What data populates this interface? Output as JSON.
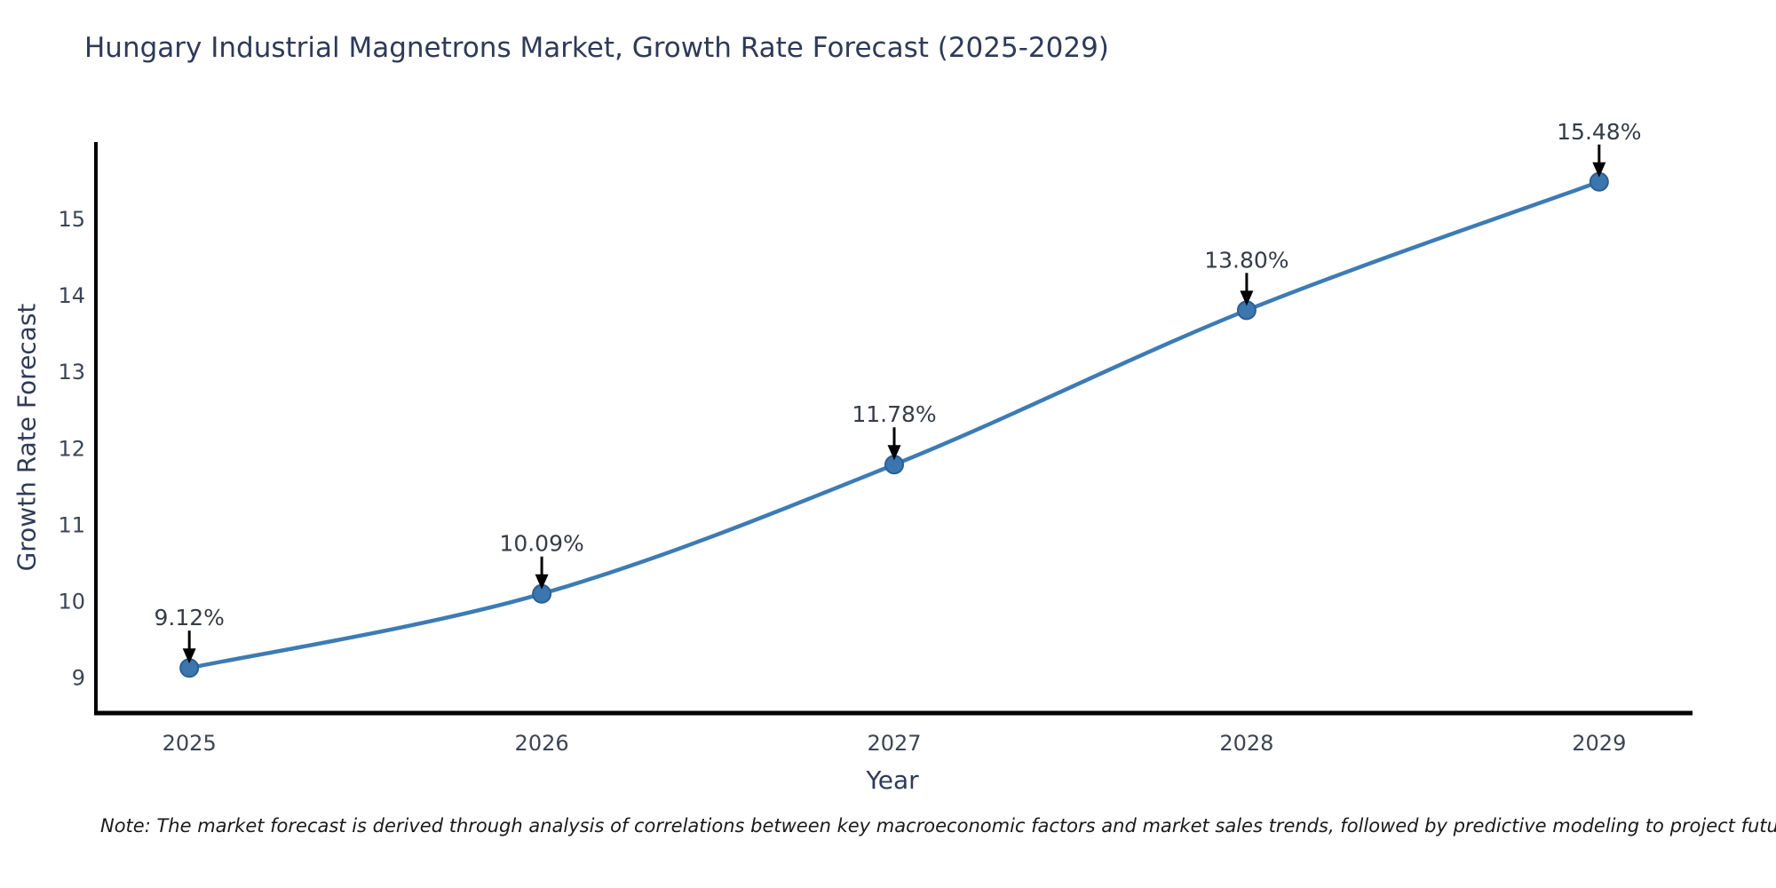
{
  "figure": {
    "background": "#ffffff",
    "note": "Note: The market forecast is derived through analysis of correlations between key macroeconomic factors and market sales trends, followed by predictive modeling to project future sales"
  },
  "chart_data": {
    "type": "line",
    "title": "Hungary Industrial Magnetrons Market, Growth Rate Forecast (2025-2029)",
    "xlabel": "Year",
    "ylabel": "Growth Rate Forecast",
    "x": [
      2025,
      2026,
      2027,
      2028,
      2029
    ],
    "y": [
      9.12,
      10.09,
      11.78,
      13.8,
      15.48
    ],
    "point_labels": [
      "9.12%",
      "10.09%",
      "11.78%",
      "13.80%",
      "15.48%"
    ],
    "xtick_labels": [
      "2025",
      "2026",
      "2027",
      "2028",
      "2029"
    ],
    "yticks": [
      9,
      10,
      11,
      12,
      13,
      14,
      15
    ],
    "xlim": [
      2024.735,
      2029.265
    ],
    "ylim": [
      8.53,
      16.0
    ],
    "grid": false,
    "legend": "none",
    "line_color": "#3d7bb4",
    "marker_color": "#3b76ae",
    "marker_edge_color": "#2c5f93",
    "arrow_color": "#000000",
    "axis_color": "#000000"
  }
}
